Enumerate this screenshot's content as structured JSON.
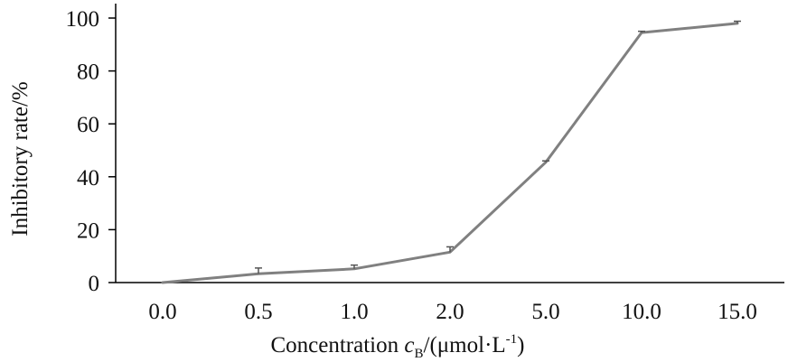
{
  "chart_data": {
    "type": "line",
    "title": "",
    "categories": [
      "0.0",
      "0.5",
      "1.0",
      "2.0",
      "5.0",
      "10.0",
      "15.0"
    ],
    "series": [
      {
        "values": [
          0,
          3.3,
          5.2,
          11.5,
          45.5,
          94.5,
          98
        ],
        "error_upper": [
          0,
          2.2,
          1.4,
          2.0,
          0.5,
          0.5,
          0.8
        ],
        "color": "#808080"
      }
    ],
    "ylim": [
      0,
      100
    ],
    "yticks": [
      0,
      20,
      40,
      60,
      80,
      100
    ],
    "ylabel": "Inhibitory rate/%",
    "xlabel": {
      "prefix": "Concentration ",
      "var": "c",
      "sub": "B",
      "mid": "/(μmol·L",
      "sup": "-1",
      "suffix": ")"
    },
    "grid": false,
    "legend": "none",
    "axis_color": "#000000"
  }
}
